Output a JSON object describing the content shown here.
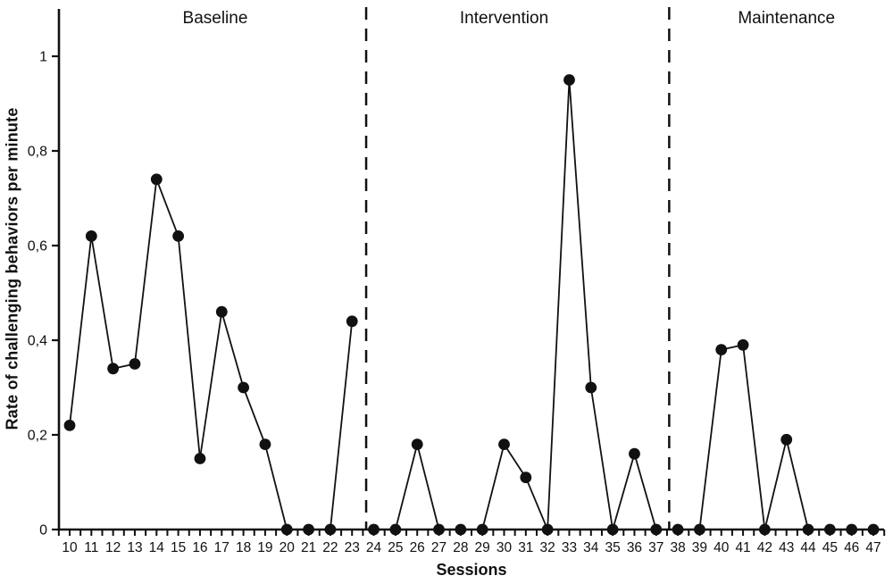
{
  "chart_data": {
    "type": "line",
    "title": "",
    "xlabel": "Sessions",
    "ylabel": "Rate of challenging behaviors per minute",
    "x": [
      10,
      11,
      12,
      13,
      14,
      15,
      16,
      17,
      18,
      19,
      20,
      21,
      22,
      23,
      24,
      25,
      26,
      27,
      28,
      29,
      30,
      31,
      32,
      33,
      34,
      35,
      36,
      37,
      38,
      39,
      40,
      41,
      42,
      43,
      44,
      45,
      46,
      47
    ],
    "values": [
      0.22,
      0.62,
      0.34,
      0.35,
      0.74,
      0.62,
      0.15,
      0.46,
      0.3,
      0.18,
      0,
      0,
      0,
      0.44,
      0,
      0,
      0.18,
      0,
      0,
      0,
      0.18,
      0.11,
      0,
      0.95,
      0.3,
      0,
      0.16,
      0,
      0,
      0,
      0.38,
      0.39,
      0,
      0.19,
      0,
      0,
      0,
      0
    ],
    "ylim": [
      0,
      1.1
    ],
    "xlim_sessions": [
      9.5,
      47.5
    ],
    "yticks": [
      0,
      0.2,
      0.4,
      0.6,
      0.8,
      1
    ],
    "ytick_labels": [
      "0",
      "0,2",
      "0,4",
      "0,6",
      "0,8",
      "1"
    ],
    "xtick_minor_step": 0.5,
    "grid": false,
    "legend": "none",
    "marker": "filled-circle",
    "colors": {
      "line": "#111111",
      "marker": "#111111",
      "axis": "#111111",
      "divider": "#111111",
      "background": "#ffffff"
    },
    "phases": [
      {
        "label": "Baseline",
        "start_session": 10,
        "end_session": 23,
        "label_center_session": 16.7
      },
      {
        "label": "Intervention",
        "start_session": 24,
        "end_session": 37,
        "label_center_session": 30.0
      },
      {
        "label": "Maintenance",
        "start_session": 38,
        "end_session": 47,
        "label_center_session": 43.0
      }
    ],
    "phase_divider_sessions": [
      23.65,
      37.6
    ]
  }
}
